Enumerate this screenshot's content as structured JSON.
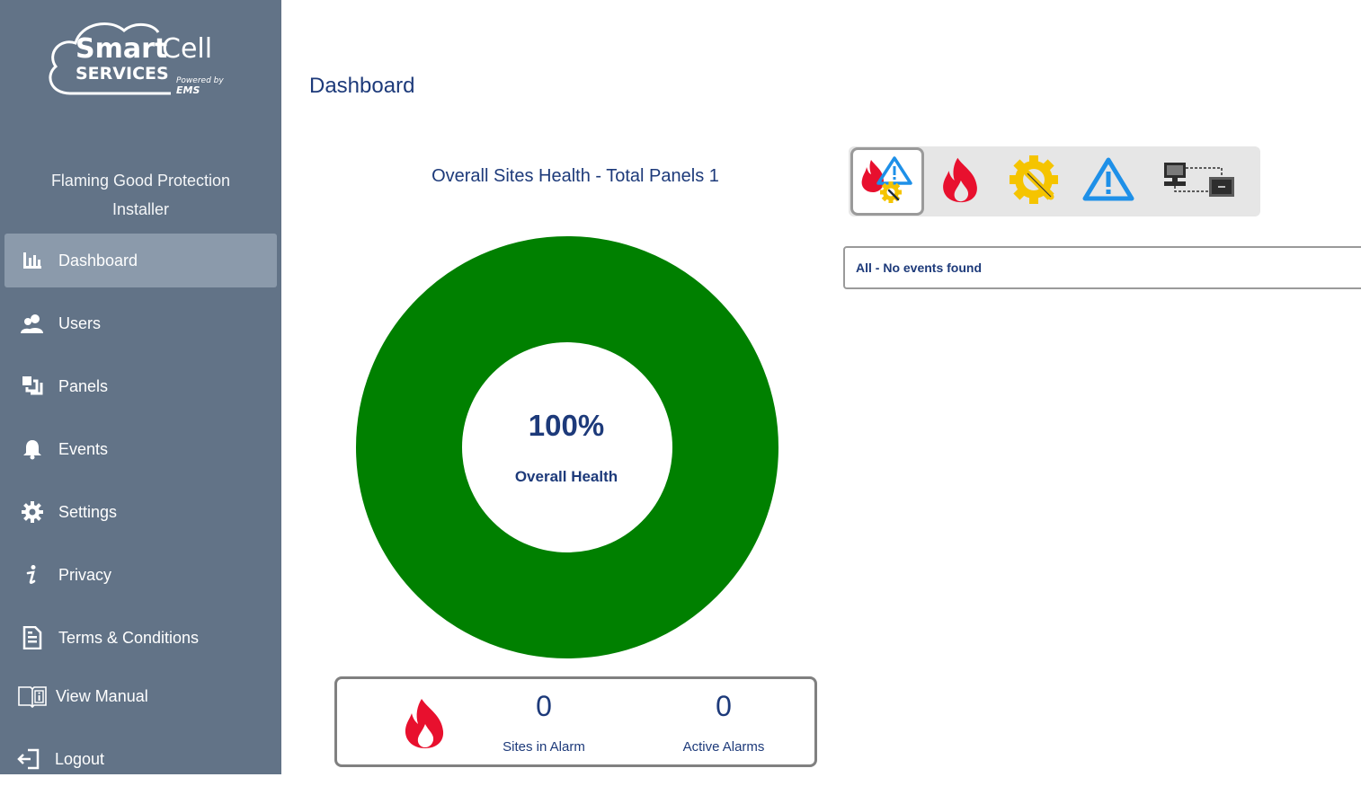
{
  "brand": {
    "name_part1": "Smart",
    "name_part2": "Cell",
    "services": "SERVICES",
    "powered_by": "Powered by",
    "ems": "EMS"
  },
  "org": {
    "name": "Flaming Good Protection",
    "role": "Installer"
  },
  "nav": [
    {
      "label": "Dashboard",
      "icon": "bar-chart-icon",
      "active": true
    },
    {
      "label": "Users",
      "icon": "users-icon"
    },
    {
      "label": "Panels",
      "icon": "panels-icon"
    },
    {
      "label": "Events",
      "icon": "bell-icon"
    },
    {
      "label": "Settings",
      "icon": "gear-icon"
    },
    {
      "label": "Privacy",
      "icon": "info-icon"
    },
    {
      "label": "Terms & Conditions",
      "icon": "document-icon"
    },
    {
      "label": "View Manual",
      "icon": "manual-icon"
    },
    {
      "label": "Logout",
      "icon": "logout-icon"
    }
  ],
  "page": {
    "title": "Dashboard"
  },
  "health": {
    "title": "Overall Sites Health - Total Panels 1",
    "percent": "100%",
    "label": "Overall Health",
    "color": "#008000"
  },
  "stats": {
    "sites_in_alarm": {
      "value": "0",
      "label": "Sites in Alarm"
    },
    "active_alarms": {
      "value": "0",
      "label": "Active Alarms"
    }
  },
  "filters": [
    {
      "icon": "all-events-icon",
      "selected": true
    },
    {
      "icon": "fire-icon"
    },
    {
      "icon": "fault-icon"
    },
    {
      "icon": "warning-icon"
    },
    {
      "icon": "communication-icon"
    }
  ],
  "events": {
    "message": "All - No events found"
  },
  "colors": {
    "sidebar": "#627387",
    "sidebar_active": "#8b9aab",
    "accent_text": "#1d3a7a",
    "fire": "#e8102e",
    "fault": "#f5c400",
    "warning": "#1e90e8"
  }
}
